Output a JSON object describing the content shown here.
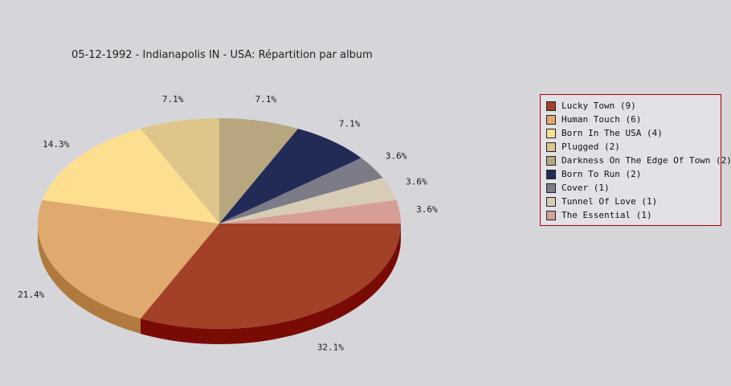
{
  "chart_data": {
    "type": "pie",
    "title": "05-12-1992 - Indianapolis IN - USA:  Répartition par album",
    "slices": [
      {
        "label": "Lucky Town",
        "value": 9,
        "display": "Lucky Town (9)",
        "pct_label": "32.1%",
        "color": "#a34028",
        "side": "#7a0b04"
      },
      {
        "label": "Human Touch",
        "value": 6,
        "display": "Human Touch (6)",
        "pct_label": "21.4%",
        "color": "#e0a96d",
        "side": "#b07a3e"
      },
      {
        "label": "Born In The USA",
        "value": 4,
        "display": "Born In The USA (4)",
        "pct_label": "14.3%",
        "color": "#fedf8f",
        "side": "#c8ac5e"
      },
      {
        "label": "Plugged",
        "value": 2,
        "display": "Plugged (2)",
        "pct_label": "7.1%",
        "color": "#dec68b",
        "side": "#ad965c"
      },
      {
        "label": "Darkness On The Edge Of Town",
        "value": 2,
        "display": "Darkness On The Edge Of Town (2)",
        "pct_label": "7.1%",
        "color": "#b8a67f",
        "side": "#8a7a57"
      },
      {
        "label": "Born To Run",
        "value": 2,
        "display": "Born To Run (2)",
        "pct_label": "7.1%",
        "color": "#222a56",
        "side": "#121738"
      },
      {
        "label": "Cover",
        "value": 1,
        "display": "Cover (1)",
        "pct_label": "3.6%",
        "color": "#7c7b88",
        "side": "#55545f"
      },
      {
        "label": "Tunnel Of Love",
        "value": 1,
        "display": "Tunnel Of Love (1)",
        "pct_label": "3.6%",
        "color": "#d7ccb5",
        "side": "#a89d86"
      },
      {
        "label": "The Essential",
        "value": 1,
        "display": "The Essential (1)",
        "pct_label": "3.6%",
        "color": "#d69e96",
        "side": "#a8706a"
      }
    ],
    "legend_position": "right"
  }
}
